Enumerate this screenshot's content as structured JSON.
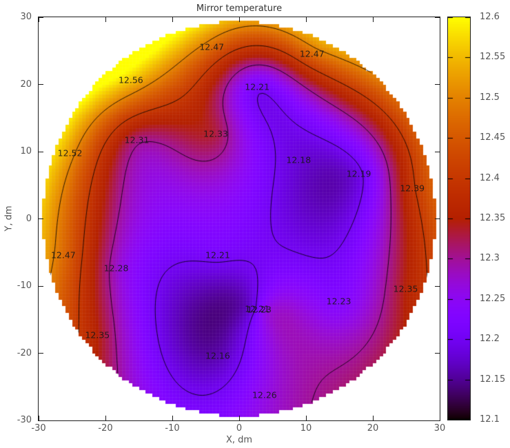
{
  "chart_data": {
    "type": "heatmap",
    "title": "Mirror temperature",
    "xlabel": "X, dm",
    "ylabel": "Y, dm",
    "xlim": [
      -30,
      30
    ],
    "ylim": [
      -30,
      30
    ],
    "x_ticks": [
      "-30",
      "-20",
      "-10",
      "0",
      "10",
      "20",
      "30"
    ],
    "y_ticks": [
      "30",
      "20",
      "10",
      "0",
      "-10",
      "-20",
      "-30"
    ],
    "grid": false,
    "mirror_radius_dm": 29.4,
    "grid_cell_dm": 0.5,
    "contour_levels": [
      12.2,
      12.3,
      12.4,
      12.5
    ],
    "colorbar": {
      "min": 12.1,
      "max": 12.6,
      "tick_step": 0.05,
      "tick_labels": [
        "12.6",
        "12.55",
        "12.5",
        "12.45",
        "12.4",
        "12.35",
        "12.3",
        "12.25",
        "12.2",
        "12.15",
        "12.1"
      ],
      "palette_name": "gnuplot rgbformulae 7,5,15 (black-violet-magenta-red-orange-yellow)",
      "palette_stops": {
        "12.1": "#000000",
        "12.15": "#510096",
        "12.2": "#7202F2",
        "12.25": "#8C07F3",
        "12.3": "#A11096",
        "12.35": "#B42000",
        "12.4": "#C63700",
        "12.45": "#D55700",
        "12.5": "#E48300",
        "12.55": "#F2BA00",
        "12.6": "#FFFF00"
      }
    },
    "points": [
      {
        "x": -4.1,
        "y": 25.6,
        "value": 12.47,
        "label": "12.47"
      },
      {
        "x": 10.9,
        "y": 24.6,
        "value": 12.47,
        "label": "12.47"
      },
      {
        "x": -16.2,
        "y": 20.7,
        "value": 12.56,
        "label": "12.56"
      },
      {
        "x": 2.7,
        "y": 19.6,
        "value": 12.21,
        "label": "12.21"
      },
      {
        "x": -3.5,
        "y": 12.7,
        "value": 12.33,
        "label": "12.33"
      },
      {
        "x": -15.3,
        "y": 11.7,
        "value": 12.31,
        "label": "12.31"
      },
      {
        "x": -25.3,
        "y": 9.8,
        "value": 12.52,
        "label": "12.52"
      },
      {
        "x": 8.9,
        "y": 8.8,
        "value": 12.18,
        "label": "12.18"
      },
      {
        "x": 17.9,
        "y": 6.7,
        "value": 12.19,
        "label": "12.19"
      },
      {
        "x": 25.9,
        "y": 4.6,
        "value": 12.39,
        "label": "12.39"
      },
      {
        "x": -26.3,
        "y": -5.4,
        "value": 12.47,
        "label": "12.47"
      },
      {
        "x": -18.4,
        "y": -7.3,
        "value": 12.28,
        "label": "12.28"
      },
      {
        "x": -3.2,
        "y": -5.4,
        "value": 12.21,
        "label": "12.21"
      },
      {
        "x": 2.7,
        "y": -13.4,
        "value": 12.21,
        "label": "12.21"
      },
      {
        "x": 3.0,
        "y": -13.5,
        "value": 12.23,
        "label": "12.23"
      },
      {
        "x": 14.9,
        "y": -12.3,
        "value": 12.23,
        "label": "12.23"
      },
      {
        "x": 24.9,
        "y": -10.4,
        "value": 12.35,
        "label": "12.35"
      },
      {
        "x": -21.2,
        "y": -17.3,
        "value": 12.35,
        "label": "12.35"
      },
      {
        "x": -3.2,
        "y": -20.4,
        "value": 12.16,
        "label": "12.16"
      },
      {
        "x": 3.8,
        "y": -26.2,
        "value": 12.26,
        "label": "12.26"
      }
    ]
  }
}
